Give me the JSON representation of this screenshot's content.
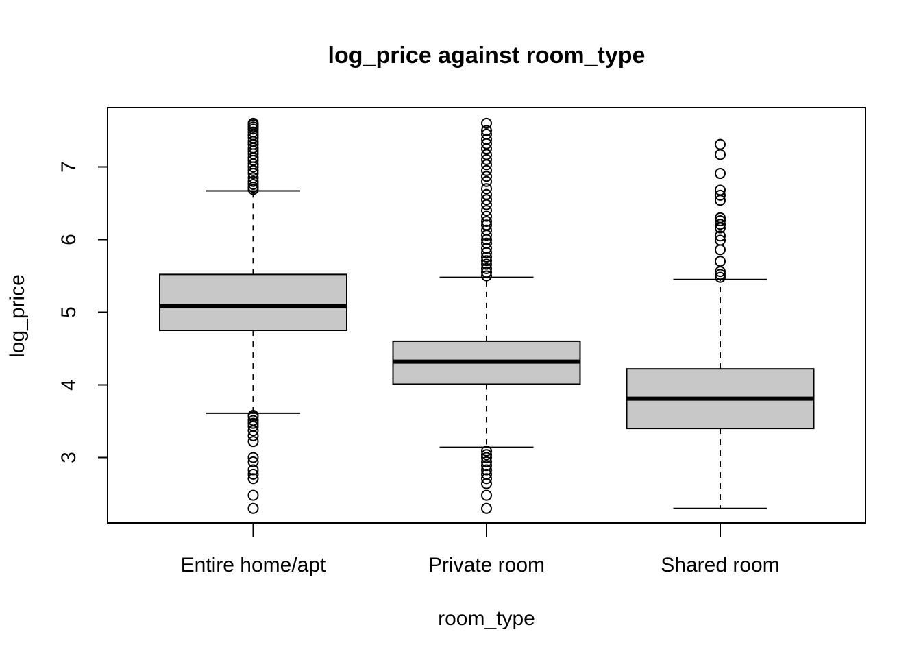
{
  "chart_data": {
    "type": "boxplot",
    "title": "log_price against room_type",
    "xlabel": "room_type",
    "ylabel": "log_price",
    "ylim": [
      2.1,
      7.8
    ],
    "yticks": [
      3,
      4,
      5,
      6,
      7
    ],
    "categories": [
      "Entire home/apt",
      "Private room",
      "Shared room"
    ],
    "box_fill": "#c8c8c8",
    "grid": false,
    "legend": "none",
    "boxes": [
      {
        "category": "Entire home/apt",
        "whisker_low": 3.61,
        "q1": 4.75,
        "median": 5.08,
        "q3": 5.52,
        "whisker_high": 6.67,
        "outliers": [
          2.3,
          2.48,
          2.71,
          2.77,
          2.83,
          2.94,
          3.0,
          3.22,
          3.3,
          3.37,
          3.43,
          3.47,
          3.51,
          3.56,
          3.58,
          6.69,
          6.72,
          6.76,
          6.8,
          6.85,
          6.91,
          6.95,
          7.0,
          7.04,
          7.09,
          7.13,
          7.18,
          7.22,
          7.26,
          7.31,
          7.35,
          7.4,
          7.44,
          7.48,
          7.52,
          7.55,
          7.58,
          7.6
        ]
      },
      {
        "category": "Private room",
        "whisker_low": 3.14,
        "q1": 4.01,
        "median": 4.32,
        "q3": 4.6,
        "whisker_high": 5.48,
        "outliers": [
          2.3,
          2.48,
          2.64,
          2.71,
          2.77,
          2.83,
          2.89,
          2.94,
          3.0,
          3.04,
          3.09,
          5.5,
          5.55,
          5.6,
          5.66,
          5.71,
          5.76,
          5.82,
          5.88,
          5.95,
          6.0,
          6.06,
          6.13,
          6.2,
          6.25,
          6.32,
          6.4,
          6.48,
          6.55,
          6.62,
          6.7,
          6.8,
          6.87,
          6.95,
          7.03,
          7.1,
          7.17,
          7.25,
          7.32,
          7.38,
          7.45,
          7.5,
          7.6
        ]
      },
      {
        "category": "Shared room",
        "whisker_low": 2.3,
        "q1": 3.4,
        "median": 3.81,
        "q3": 4.22,
        "whisker_high": 5.45,
        "outliers": [
          5.48,
          5.52,
          5.56,
          5.7,
          5.86,
          5.99,
          6.05,
          6.16,
          6.21,
          6.26,
          6.3,
          6.54,
          6.61,
          6.68,
          6.91,
          7.17,
          7.31
        ]
      }
    ]
  }
}
